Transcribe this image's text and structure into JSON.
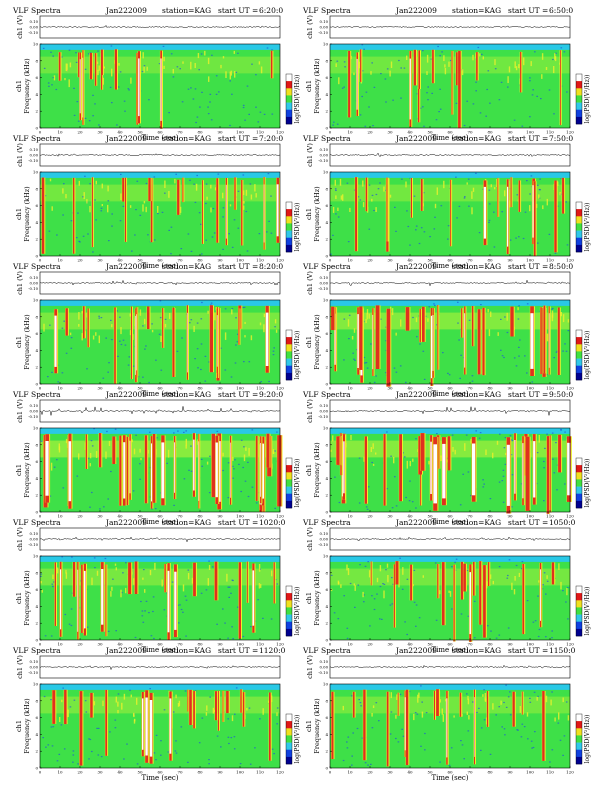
{
  "page": {
    "heading_left": "VLF Spectra",
    "date": "Jan222009",
    "station": "station=KAG",
    "ut_prefix": "start  UT ="
  },
  "common": {
    "trace_ylabel": "ch1 (V)",
    "trace_ticks": [
      "0.10",
      "0.00",
      "-0.10"
    ],
    "spec_ylabel": "Frequency  (kHz)",
    "spec_channel": "ch1",
    "freq_ticks": [
      "0",
      "2",
      "4",
      "6",
      "8",
      "10"
    ],
    "time_ticks": [
      "0",
      "10",
      "20",
      "30",
      "40",
      "50",
      "60",
      "70",
      "80",
      "90",
      "100",
      "110",
      "120"
    ],
    "xlabel": "Time  (sec)",
    "colorbar_label": "log(PSD(V²/Hz))"
  },
  "colors": {
    "background": "#29c8e6",
    "mid": "#3ee048",
    "noise": "#1f58d6",
    "band_low": "#aaf03a",
    "band": "#ecf02c",
    "burst": "#e0301e",
    "burst_core": "#ffffff",
    "colorbar": [
      "#ffffff",
      "#e01818",
      "#f0e020",
      "#40e040",
      "#30c8e8",
      "#1040e0",
      "#000090"
    ]
  },
  "chart_data": [
    {
      "type": "heatmap",
      "start_ut": "6:20:0",
      "intensity": 0.25,
      "xlim": [
        0,
        120
      ],
      "ylim": [
        0,
        10
      ],
      "y_unit": "kHz"
    },
    {
      "type": "heatmap",
      "start_ut": "6:50:0",
      "intensity": 0.3,
      "xlim": [
        0,
        120
      ],
      "ylim": [
        0,
        10
      ],
      "y_unit": "kHz"
    },
    {
      "type": "heatmap",
      "start_ut": "7:20:0",
      "intensity": 0.35,
      "xlim": [
        0,
        120
      ],
      "ylim": [
        0,
        10
      ],
      "y_unit": "kHz"
    },
    {
      "type": "heatmap",
      "start_ut": "7:50:0",
      "intensity": 0.35,
      "xlim": [
        0,
        120
      ],
      "ylim": [
        0,
        10
      ],
      "y_unit": "kHz"
    },
    {
      "type": "heatmap",
      "start_ut": "8:20:0",
      "intensity": 0.5,
      "xlim": [
        0,
        120
      ],
      "ylim": [
        0,
        10
      ],
      "y_unit": "kHz"
    },
    {
      "type": "heatmap",
      "start_ut": "8:50:0",
      "intensity": 0.7,
      "xlim": [
        0,
        120
      ],
      "ylim": [
        0,
        10
      ],
      "y_unit": "kHz"
    },
    {
      "type": "heatmap",
      "start_ut": "9:20:0",
      "intensity": 0.85,
      "xlim": [
        0,
        120
      ],
      "ylim": [
        0,
        10
      ],
      "y_unit": "kHz"
    },
    {
      "type": "heatmap",
      "start_ut": "9:50:0",
      "intensity": 0.8,
      "xlim": [
        0,
        120
      ],
      "ylim": [
        0,
        10
      ],
      "y_unit": "kHz"
    },
    {
      "type": "heatmap",
      "start_ut": "1020:0",
      "intensity": 0.45,
      "xlim": [
        0,
        120
      ],
      "ylim": [
        0,
        10
      ],
      "y_unit": "kHz"
    },
    {
      "type": "heatmap",
      "start_ut": "1050:0",
      "intensity": 0.4,
      "xlim": [
        0,
        120
      ],
      "ylim": [
        0,
        10
      ],
      "y_unit": "kHz"
    },
    {
      "type": "heatmap",
      "start_ut": "1120:0",
      "intensity": 0.45,
      "xlim": [
        0,
        120
      ],
      "ylim": [
        0,
        10
      ],
      "y_unit": "kHz"
    },
    {
      "type": "heatmap",
      "start_ut": "1150:0",
      "intensity": 0.35,
      "xlim": [
        0,
        120
      ],
      "ylim": [
        0,
        10
      ],
      "y_unit": "kHz"
    }
  ]
}
